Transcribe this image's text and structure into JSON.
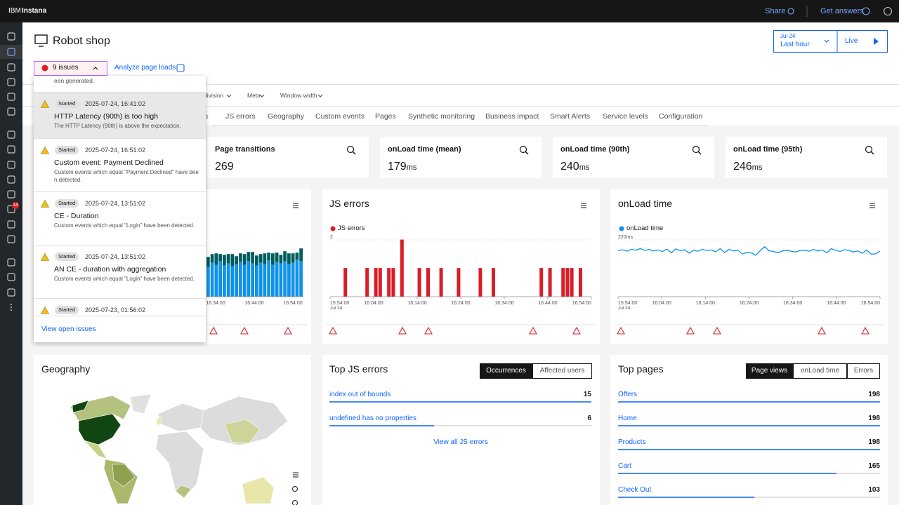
{
  "topbar": {
    "brand_prefix": "IBM",
    "brand": "Instana",
    "share": "Share",
    "help": "Get answers"
  },
  "sidebar": {
    "alert_badge": "14"
  },
  "header": {
    "title": "Robot shop",
    "date": "Jul 24",
    "range": "Last hour",
    "live": "Live",
    "issues": "9 issues",
    "analyze": "Analyze page loads"
  },
  "filters": [
    "division",
    "Meta",
    "Window width"
  ],
  "tabs": [
    "ts",
    "JS errors",
    "Geography",
    "Custom events",
    "Pages",
    "Synthetic monitoring",
    "Business impact",
    "Smart Alerts",
    "Service levels",
    "Configuration"
  ],
  "kpis": [
    {
      "label": "Page transitions",
      "value": 269
    },
    {
      "label": "onLoad time (mean)",
      "value": 179,
      "unit": "ms"
    },
    {
      "label": "onLoad time (90th)",
      "value": 240,
      "unit": "ms"
    },
    {
      "label": "onLoad time (95th)",
      "value": 246,
      "unit": "ms"
    }
  ],
  "traffic_chart": {
    "type": "bar",
    "x_labels": [
      "16:34:00",
      "16:44:00",
      "16:54:00"
    ],
    "ylim": [
      0,
      80
    ],
    "series": [
      {
        "color": "#1192e8",
        "values": [
          42,
          48,
          45,
          50,
          44,
          47,
          43,
          46,
          49,
          45,
          50,
          47,
          44,
          48,
          46,
          51,
          45,
          49,
          47,
          50,
          46,
          48,
          52,
          50
        ]
      },
      {
        "color": "#005d5d",
        "values": [
          14,
          12,
          16,
          10,
          15,
          13,
          17,
          11,
          12,
          15,
          13,
          16,
          14,
          12,
          15,
          11,
          16,
          13,
          12,
          14,
          15,
          13,
          10,
          18
        ]
      }
    ]
  },
  "js_errors_chart": {
    "type": "bar",
    "title": "JS errors",
    "legend": "JS errors",
    "color": "#da1e28",
    "ylim": [
      0,
      2
    ],
    "yticks": [
      2
    ],
    "x_labels": [
      "15:54:00",
      "16:04:00",
      "16:14:00",
      "16:24:00",
      "16:34:00",
      "16:44:00",
      "16:54:00"
    ],
    "x_date": "Jul 24",
    "values": [
      0,
      0,
      0,
      1,
      0,
      0,
      0,
      0,
      1,
      0,
      1,
      1,
      0,
      1,
      1,
      0,
      2,
      0,
      0,
      0,
      1,
      0,
      1,
      0,
      0,
      1,
      0,
      0,
      0,
      1,
      0,
      0,
      0,
      0,
      1,
      0,
      0,
      1,
      0,
      0,
      0,
      0,
      0,
      0,
      0,
      0,
      0,
      0,
      1,
      0,
      1,
      0,
      0,
      1,
      1,
      1,
      0,
      1,
      0,
      0
    ]
  },
  "onload_chart": {
    "type": "line",
    "title": "onLoad time",
    "legend": "onLoad time",
    "color": "#1192e8",
    "ylim": [
      0,
      220
    ],
    "yticks": [
      {
        "value": 220,
        "label": "220ms"
      }
    ],
    "x_labels": [
      "15:54:00",
      "16:04:00",
      "16:14:00",
      "16:24:00",
      "16:34:00",
      "16:44:00",
      "16:54:00"
    ],
    "x_date": "Jul 24",
    "values": [
      178,
      182,
      176,
      184,
      180,
      186,
      179,
      183,
      177,
      181,
      175,
      184,
      170,
      185,
      178,
      182,
      168,
      180,
      176,
      183,
      179,
      181,
      174,
      186,
      171,
      184,
      177,
      180,
      165,
      172,
      170,
      160,
      178,
      194,
      178,
      175,
      170,
      177,
      180,
      176,
      173,
      179,
      180,
      176,
      183,
      177,
      181,
      170,
      186,
      180,
      175,
      182,
      179,
      173,
      177,
      168,
      181,
      165,
      166,
      176
    ]
  },
  "geography": {
    "title": "Geography"
  },
  "top_js_errors": {
    "title": "Top JS errors",
    "tabs": [
      "Occurrences",
      "Affected users"
    ],
    "rows": [
      {
        "name": "index out of bounds",
        "value": 15
      },
      {
        "name": "undefined has no properties",
        "value": 6
      }
    ],
    "link": "View all JS errors"
  },
  "top_pages": {
    "title": "Top pages",
    "tabs": [
      "Page views",
      "onLoad time",
      "Errors"
    ],
    "rows": [
      {
        "name": "Offers",
        "value": 198
      },
      {
        "name": "Home",
        "value": 198
      },
      {
        "name": "Products",
        "value": 198
      },
      {
        "name": "Cart",
        "value": 165
      },
      {
        "name": "Check Out",
        "value": 103
      }
    ]
  },
  "issues_popup": {
    "partial": "een generated.",
    "items": [
      {
        "status": "Started",
        "time": "2025-07-24, 16:41:02",
        "title": "HTTP Latency (90th) is too high",
        "description": "The HTTP Latency (90th) is above the expectation."
      },
      {
        "status": "Started",
        "time": "2025-07-24, 16:51:02",
        "title": "Custom event: Payment Declined",
        "description": "Custom events which equal \"Payment Declined\" have been detected."
      },
      {
        "status": "Started",
        "time": "2025-07-24, 13:51:02",
        "title": "CE - Duration",
        "description": "Custom events which equal \"Login\" have been detected."
      },
      {
        "status": "Started",
        "time": "2025-07-24, 13:51:02",
        "title": "AN CE - duration with aggregation",
        "description": "Custom events which equal \"Login\" have been detected."
      },
      {
        "status": "Started",
        "time": "2025-07-23, 01:56:02"
      }
    ],
    "footer": "View open issues"
  }
}
